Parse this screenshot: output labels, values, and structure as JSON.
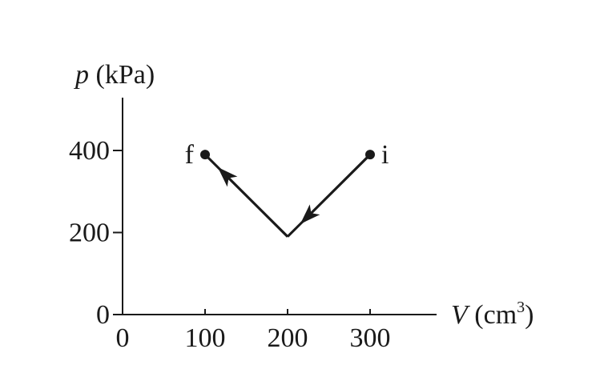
{
  "chart_data": {
    "type": "line",
    "xlabel": {
      "var": "V",
      "unit_open": " (cm",
      "unit_sup": "3",
      "unit_close": ")"
    },
    "ylabel": {
      "var": "p",
      "unit": " (kPa)"
    },
    "x_ticks": [
      "0",
      "100",
      "200",
      "300"
    ],
    "x_tick_values": [
      0,
      100,
      200,
      300
    ],
    "y_ticks": [
      "0",
      "200",
      "400"
    ],
    "y_tick_values": [
      0,
      200,
      400
    ],
    "xlim": [
      0,
      380
    ],
    "ylim": [
      0,
      520
    ],
    "grid": false,
    "series": [
      {
        "points": [
          {
            "x": 300,
            "y": 390,
            "label": "i"
          },
          {
            "x": 200,
            "y": 190
          },
          {
            "x": 100,
            "y": 390,
            "label": "f"
          }
        ],
        "direction": "arrows from i to f"
      }
    ],
    "colors": {
      "ink": "#1a1a1a"
    }
  }
}
